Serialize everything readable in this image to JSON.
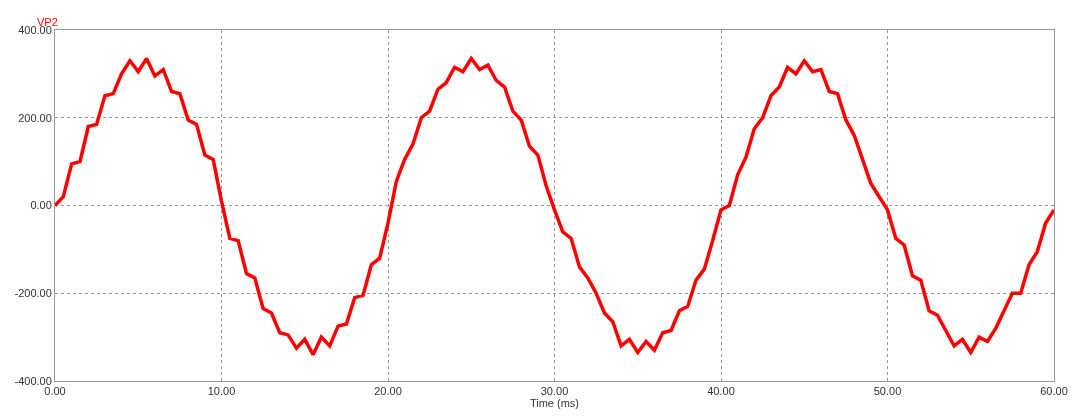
{
  "chart_data": {
    "type": "line",
    "xlabel": "Time (ms)",
    "x": [
      0,
      0.5,
      1,
      1.5,
      2,
      2.5,
      3,
      3.5,
      4,
      4.5,
      5,
      5.5,
      6,
      6.5,
      7,
      7.5,
      8,
      8.5,
      9,
      9.5,
      10,
      10.5,
      11,
      11.5,
      12,
      12.5,
      13,
      13.5,
      14,
      14.5,
      15,
      15.5,
      16,
      16.5,
      17,
      17.5,
      18,
      18.5,
      19,
      19.5,
      20,
      20.5,
      21,
      21.5,
      22,
      22.5,
      23,
      23.5,
      24,
      24.5,
      25,
      25.5,
      26,
      26.5,
      27,
      27.5,
      28,
      28.5,
      29,
      29.5,
      30,
      30.5,
      31,
      31.5,
      32,
      32.5,
      33,
      33.5,
      34,
      34.5,
      35,
      35.5,
      36,
      36.5,
      37,
      37.5,
      38,
      38.5,
      39,
      39.5,
      40,
      40.5,
      41,
      41.5,
      42,
      42.5,
      43,
      43.5,
      44,
      44.5,
      45,
      45.5,
      46,
      46.5,
      47,
      47.5,
      48,
      48.5,
      49,
      49.5,
      50,
      50.5,
      51,
      51.5,
      52,
      52.5,
      53,
      53.5,
      54,
      54.5,
      55,
      55.5,
      56,
      56.5,
      57,
      57.5,
      58,
      58.5,
      59,
      59.5,
      60
    ],
    "series": [
      {
        "name": "VP2",
        "color": "#ff0000",
        "values": [
          0,
          20,
          95,
          100,
          180,
          185,
          250,
          255,
          300,
          330,
          305,
          335,
          295,
          310,
          260,
          255,
          195,
          185,
          115,
          105,
          10,
          -75,
          -80,
          -155,
          -165,
          -235,
          -245,
          -290,
          -295,
          -325,
          -305,
          -340,
          -300,
          -320,
          -275,
          -270,
          -210,
          -205,
          -135,
          -120,
          -40,
          55,
          105,
          140,
          200,
          215,
          265,
          280,
          315,
          305,
          335,
          310,
          320,
          285,
          270,
          215,
          195,
          135,
          115,
          45,
          -10,
          -60,
          -75,
          -140,
          -165,
          -200,
          -245,
          -265,
          -320,
          -305,
          -335,
          -310,
          -330,
          -290,
          -285,
          -240,
          -230,
          -170,
          -145,
          -80,
          -10,
          0,
          70,
          110,
          175,
          200,
          250,
          270,
          315,
          300,
          330,
          305,
          310,
          260,
          255,
          195,
          160,
          105,
          50,
          20,
          -10,
          -75,
          -90,
          -160,
          -170,
          -240,
          -250,
          -285,
          -320,
          -305,
          -335,
          -300,
          -310,
          -280,
          -240,
          -200,
          -200,
          -135,
          -105,
          -40,
          -10
        ]
      }
    ],
    "xlim": [
      0,
      60
    ],
    "xticks": [
      {
        "value": 0,
        "label": "0.00"
      },
      {
        "value": 10,
        "label": "10.00"
      },
      {
        "value": 20,
        "label": "20.00"
      },
      {
        "value": 30,
        "label": "30.00"
      },
      {
        "value": 40,
        "label": "40.00"
      },
      {
        "value": 50,
        "label": "50.00"
      },
      {
        "value": 60,
        "label": "60.00"
      }
    ],
    "ylim": [
      -400,
      400
    ],
    "yticks": [
      {
        "value": -400,
        "label": "-400.00"
      },
      {
        "value": -200,
        "label": "-200.00"
      },
      {
        "value": 0,
        "label": "0.00"
      },
      {
        "value": 200,
        "label": "200.00"
      },
      {
        "value": 400,
        "label": "400.00"
      }
    ],
    "grid": true,
    "legend": false,
    "marker": "none",
    "line_style": "solid"
  }
}
